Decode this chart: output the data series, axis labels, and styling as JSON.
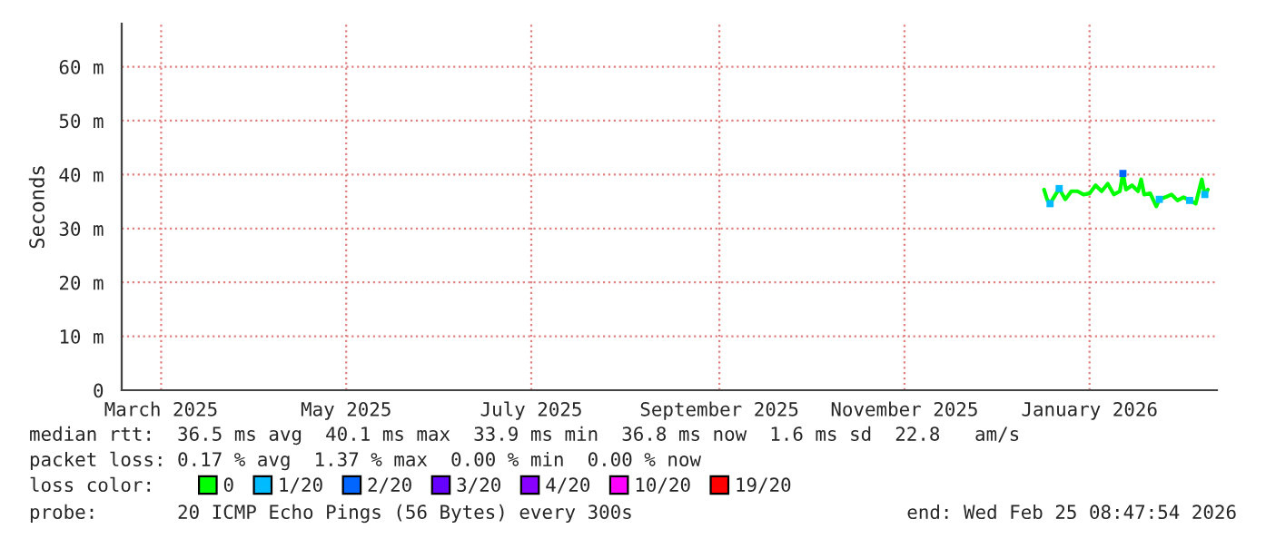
{
  "chart_data": {
    "type": "line",
    "ylabel": "Seconds",
    "x": [
      "2025-12-17",
      "2025-12-18",
      "2025-12-19",
      "2025-12-22",
      "2025-12-24",
      "2025-12-26",
      "2025-12-28",
      "2025-12-30",
      "2026-01-01",
      "2026-01-03",
      "2026-01-05",
      "2026-01-07",
      "2026-01-09",
      "2026-01-11",
      "2026-01-12",
      "2026-01-13",
      "2026-01-15",
      "2026-01-17",
      "2026-01-18",
      "2026-01-19",
      "2026-01-21",
      "2026-01-23",
      "2026-01-24",
      "2026-01-26",
      "2026-01-28",
      "2026-01-30",
      "2026-02-01",
      "2026-02-03",
      "2026-02-05",
      "2026-02-07",
      "2026-02-08",
      "2026-02-09"
    ],
    "series": [
      {
        "name": "0",
        "color": "#00ff00",
        "values": [
          37.2,
          35.4,
          34.6,
          37.4,
          35.4,
          36.9,
          36.9,
          36.3,
          36.5,
          38.0,
          36.9,
          38.3,
          36.3,
          36.9,
          40.2,
          37.2,
          38.0,
          36.9,
          39.1,
          36.3,
          36.5,
          34.1,
          35.4,
          35.8,
          36.3,
          35.2,
          35.8,
          35.2,
          34.6,
          39.1,
          36.3,
          37.2
        ]
      },
      {
        "name": "1/20",
        "type": "scatter",
        "color": "#00bbff",
        "values": [
          null,
          null,
          34.6,
          37.4,
          null,
          null,
          null,
          null,
          null,
          null,
          null,
          null,
          null,
          null,
          null,
          null,
          null,
          null,
          null,
          null,
          null,
          null,
          35.4,
          null,
          null,
          null,
          null,
          35.2,
          null,
          null,
          36.3,
          null
        ]
      },
      {
        "name": "2/20",
        "type": "scatter",
        "color": "#0066ff",
        "values": [
          null,
          null,
          null,
          null,
          null,
          null,
          null,
          null,
          null,
          null,
          null,
          null,
          null,
          null,
          40.2,
          null,
          null,
          null,
          null,
          null,
          null,
          null,
          null,
          null,
          null,
          null,
          null,
          null,
          null,
          null,
          null,
          null
        ]
      },
      {
        "name": "3/20",
        "type": "scatter",
        "color": "#6600ff",
        "values": [
          null,
          null,
          null,
          null,
          null,
          null,
          null,
          null,
          null,
          null,
          null,
          null,
          null,
          null,
          null,
          null,
          null,
          null,
          null,
          null,
          null,
          null,
          null,
          null,
          null,
          null,
          null,
          null,
          null,
          null,
          null,
          null
        ]
      },
      {
        "name": "4/20",
        "type": "scatter",
        "color": "#8800ff",
        "values": [
          null,
          null,
          null,
          null,
          null,
          null,
          null,
          null,
          null,
          null,
          null,
          null,
          null,
          null,
          null,
          null,
          null,
          null,
          null,
          null,
          null,
          null,
          null,
          null,
          null,
          null,
          null,
          null,
          null,
          null,
          null,
          null
        ]
      },
      {
        "name": "10/20",
        "type": "scatter",
        "color": "#ff00ff",
        "values": [
          null,
          null,
          null,
          null,
          null,
          null,
          null,
          null,
          null,
          null,
          null,
          null,
          null,
          null,
          null,
          null,
          null,
          null,
          null,
          null,
          null,
          null,
          null,
          null,
          null,
          null,
          null,
          null,
          null,
          null,
          null,
          null
        ]
      },
      {
        "name": "19/20",
        "type": "scatter",
        "color": "#ff0000",
        "values": [
          null,
          null,
          null,
          null,
          null,
          null,
          null,
          null,
          null,
          null,
          null,
          null,
          null,
          null,
          null,
          null,
          null,
          null,
          null,
          null,
          null,
          null,
          null,
          null,
          null,
          null,
          null,
          null,
          null,
          null,
          null,
          null
        ]
      }
    ],
    "xlim": [
      "2025-02-16",
      "2026-02-12"
    ],
    "xticks": [
      {
        "value": "2025-03-01",
        "label": "March 2025"
      },
      {
        "value": "2025-05-01",
        "label": "May 2025"
      },
      {
        "value": "2025-07-01",
        "label": "July 2025"
      },
      {
        "value": "2025-09-01",
        "label": "September 2025"
      },
      {
        "value": "2025-11-01",
        "label": "November 2025"
      },
      {
        "value": "2026-01-01",
        "label": "January 2026"
      }
    ],
    "ylim": [
      0,
      68
    ],
    "yticks": [
      0,
      {
        "value": 10,
        "label": "10 m"
      },
      {
        "value": 20,
        "label": "20 m"
      },
      {
        "value": 30,
        "label": "30 m"
      },
      {
        "value": 40,
        "label": "40 m"
      },
      {
        "value": 50,
        "label": "50 m"
      },
      {
        "value": 60,
        "label": "60 m"
      }
    ],
    "grid": true,
    "legend": "bottom",
    "legend_title": "loss color:",
    "annotations": [
      "median rtt:  36.5 ms avg  40.1 ms max  33.9 ms min  36.8 ms now  1.6 ms sd  22.8   am/s",
      "packet loss: 0.17 % avg  1.37 % max  0.00 % min  0.00 % now",
      "probe:       20 ICMP Echo Pings (56 Bytes) every 300s",
      "end: Wed Feb 25 08:47:54 2026"
    ]
  }
}
